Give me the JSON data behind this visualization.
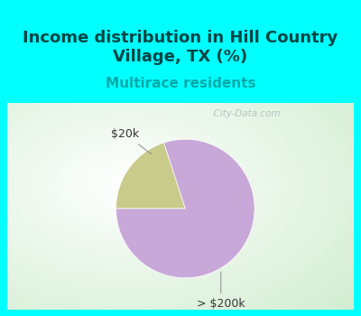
{
  "title": "Income distribution in Hill Country\nVillage, TX (%)",
  "subtitle": "Multirace residents",
  "slices": [
    {
      "label": "$20k",
      "value": 20,
      "color": "#c8cb8a"
    },
    {
      "label": "> $200k",
      "value": 80,
      "color": "#c8a8d8"
    }
  ],
  "title_color": "#004444",
  "subtitle_color": "#00aaaa",
  "header_bg_color": "#00ffff",
  "border_color": "#00ffff",
  "watermark": "  City-Data.com",
  "start_angle": 108,
  "title_fontsize": 13,
  "subtitle_fontsize": 11,
  "label_fontsize": 9
}
